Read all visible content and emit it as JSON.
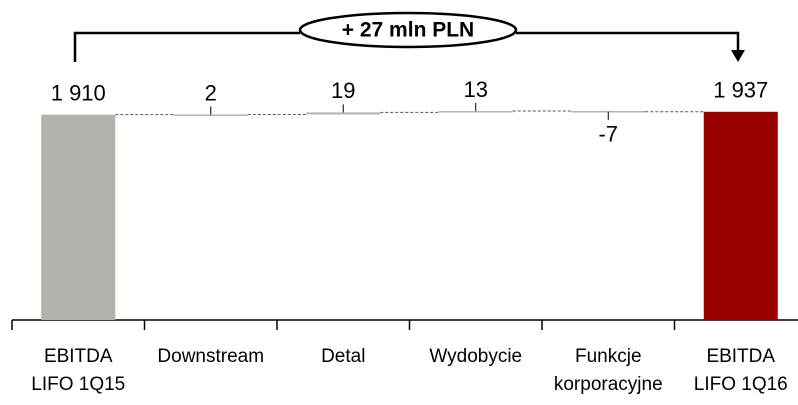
{
  "chart_data": {
    "type": "waterfall",
    "annotation": "+ 27 mln PLN",
    "categories": [
      "EBITDA\nLIFO 1Q15",
      "Downstream",
      "Detal",
      "Wydobycie",
      "Funkcje\nkorporacyjne",
      "EBITDA\nLIFO 1Q16"
    ],
    "values": [
      1910,
      2,
      19,
      13,
      -7,
      1937
    ],
    "value_labels": [
      "1 910",
      "2",
      "19",
      "13",
      "-7",
      "1 937"
    ],
    "colors": [
      "#b2b2ad",
      "#b2b2ad",
      "#b2b2ad",
      "#b2b2ad",
      "#b2b2ad",
      "#990000"
    ],
    "ylim": [
      0,
      2000
    ]
  }
}
